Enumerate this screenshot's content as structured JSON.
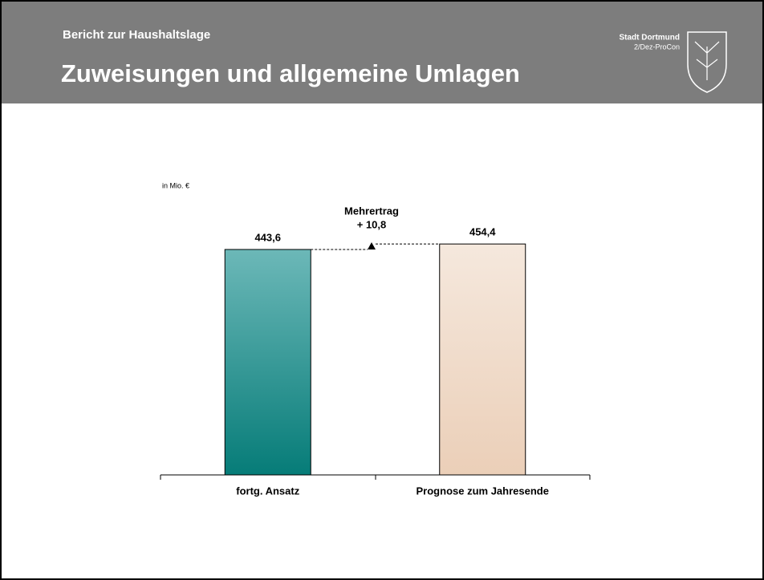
{
  "header": {
    "kicker": "Bericht zur Haushaltslage",
    "title": "Zuweisungen und allgemeine Umlagen",
    "org": "Stadt Dortmund",
    "dept": "2/Dez-ProCon"
  },
  "chart_data": {
    "type": "bar",
    "unit_label": "in Mio. €",
    "categories": [
      "fortg. Ansatz",
      "Prognose zum Jahresende"
    ],
    "values": [
      443.6,
      454.4
    ],
    "value_labels": [
      "443,6",
      "454,4"
    ],
    "gradients": [
      [
        "#6cb8b8",
        "#067c78"
      ],
      [
        "#f5e8dd",
        "#ebcfb8"
      ]
    ],
    "annotation": {
      "label": "Mehrertrag",
      "delta": "+ 10,8"
    }
  }
}
